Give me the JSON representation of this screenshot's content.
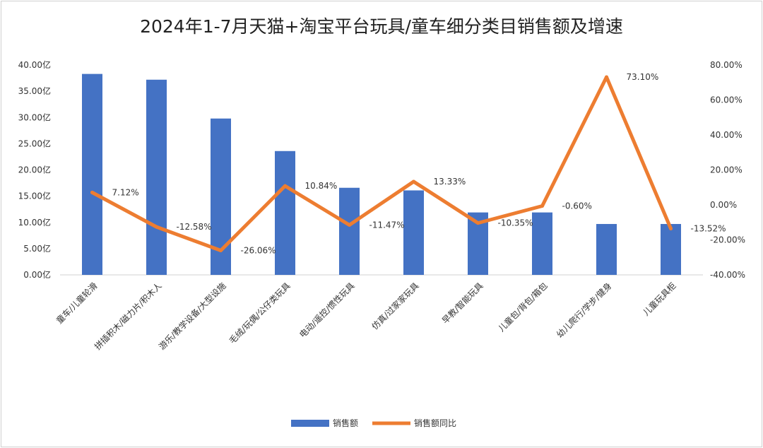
{
  "chart_data": {
    "type": "bar+line",
    "title": "2024年1-7月天猫+淘宝平台玩具/童车细分类目销售额及增速",
    "categories": [
      "童车/儿童轮滑",
      "拼插积木/磁力片/积木人",
      "游乐/教学设备/大型设施",
      "毛绒/玩偶/公仔类玩具",
      "电动/遥控/惯性玩具",
      "仿真/过家家玩具",
      "早教/智能玩具",
      "儿童包/背包/箱包",
      "幼儿爬行/学步/健身",
      "儿童玩具柜"
    ],
    "series": [
      {
        "name": "销售额",
        "type": "bar",
        "color": "#4472C4",
        "axis": "left",
        "values": [
          38.3,
          37.2,
          29.8,
          23.6,
          16.6,
          16.1,
          11.9,
          11.9,
          9.7,
          9.7
        ]
      },
      {
        "name": "销售额同比",
        "type": "line",
        "color": "#ED7D31",
        "axis": "right",
        "values": [
          7.12,
          -12.58,
          -26.06,
          10.84,
          -11.47,
          13.33,
          -10.35,
          -0.6,
          73.1,
          -13.52
        ],
        "labels": [
          "7.12%",
          "-12.58%",
          "-26.06%",
          "10.84%",
          "-11.47%",
          "13.33%",
          "-10.35%",
          "-0.60%",
          "73.10%",
          "-13.52%"
        ]
      }
    ],
    "y_left": {
      "ylim": [
        0,
        40
      ],
      "ticks": [
        "0.00亿",
        "5.00亿",
        "10.00亿",
        "15.00亿",
        "20.00亿",
        "25.00亿",
        "30.00亿",
        "35.00亿",
        "40.00亿"
      ]
    },
    "y_right": {
      "ylim": [
        -40,
        80
      ],
      "ticks": [
        "-40.00%",
        "-20.00%",
        "0.00%",
        "20.00%",
        "40.00%",
        "60.00%",
        "80.00%"
      ]
    },
    "legend": {
      "position": "bottom",
      "items": [
        "销售额",
        "销售额同比"
      ]
    },
    "grid": false
  }
}
